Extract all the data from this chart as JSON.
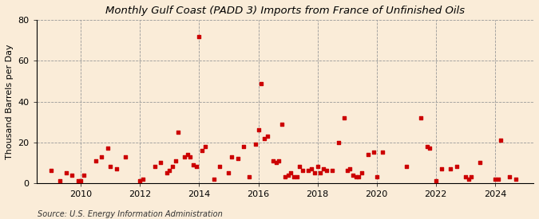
{
  "title": "Monthly Gulf Coast (PADD 3) Imports from France of Unfinished Oils",
  "ylabel": "Thousand Barrels per Day",
  "source": "Source: U.S. Energy Information Administration",
  "background_color": "#faecd8",
  "plot_background_color": "#faecd8",
  "marker_color": "#cc0000",
  "marker_size": 9,
  "ylim": [
    0,
    80
  ],
  "yticks": [
    0,
    20,
    40,
    60,
    80
  ],
  "xlim_start": 2008.5,
  "xlim_end": 2025.3,
  "xticks": [
    2010,
    2012,
    2014,
    2016,
    2018,
    2020,
    2022,
    2024
  ],
  "data_points": [
    [
      2009.0,
      6
    ],
    [
      2009.3,
      1
    ],
    [
      2009.5,
      5
    ],
    [
      2009.7,
      4
    ],
    [
      2009.9,
      1
    ],
    [
      2010.0,
      1
    ],
    [
      2010.1,
      4
    ],
    [
      2010.5,
      11
    ],
    [
      2010.7,
      13
    ],
    [
      2010.9,
      17
    ],
    [
      2011.0,
      8
    ],
    [
      2011.2,
      7
    ],
    [
      2011.5,
      13
    ],
    [
      2012.0,
      1
    ],
    [
      2012.1,
      2
    ],
    [
      2012.5,
      8
    ],
    [
      2012.7,
      10
    ],
    [
      2012.9,
      5
    ],
    [
      2013.0,
      6
    ],
    [
      2013.1,
      8
    ],
    [
      2013.2,
      11
    ],
    [
      2013.3,
      25
    ],
    [
      2013.5,
      13
    ],
    [
      2013.6,
      14
    ],
    [
      2013.7,
      13
    ],
    [
      2013.8,
      9
    ],
    [
      2013.9,
      8
    ],
    [
      2014.0,
      72
    ],
    [
      2014.1,
      16
    ],
    [
      2014.2,
      18
    ],
    [
      2014.5,
      2
    ],
    [
      2014.7,
      8
    ],
    [
      2015.0,
      5
    ],
    [
      2015.1,
      13
    ],
    [
      2015.3,
      12
    ],
    [
      2015.5,
      18
    ],
    [
      2015.7,
      3
    ],
    [
      2015.9,
      19
    ],
    [
      2016.0,
      26
    ],
    [
      2016.1,
      49
    ],
    [
      2016.2,
      22
    ],
    [
      2016.3,
      23
    ],
    [
      2016.5,
      11
    ],
    [
      2016.6,
      10
    ],
    [
      2016.7,
      11
    ],
    [
      2016.8,
      29
    ],
    [
      2016.9,
      3
    ],
    [
      2017.0,
      4
    ],
    [
      2017.1,
      5
    ],
    [
      2017.2,
      3
    ],
    [
      2017.3,
      3
    ],
    [
      2017.4,
      8
    ],
    [
      2017.5,
      6
    ],
    [
      2017.7,
      6
    ],
    [
      2017.8,
      7
    ],
    [
      2017.9,
      5
    ],
    [
      2018.0,
      8
    ],
    [
      2018.1,
      5
    ],
    [
      2018.2,
      7
    ],
    [
      2018.3,
      6
    ],
    [
      2018.5,
      6
    ],
    [
      2018.7,
      20
    ],
    [
      2018.9,
      32
    ],
    [
      2019.0,
      6
    ],
    [
      2019.1,
      7
    ],
    [
      2019.2,
      4
    ],
    [
      2019.3,
      3
    ],
    [
      2019.4,
      3
    ],
    [
      2019.5,
      5
    ],
    [
      2019.7,
      14
    ],
    [
      2019.9,
      15
    ],
    [
      2020.0,
      3
    ],
    [
      2020.2,
      15
    ],
    [
      2021.0,
      8
    ],
    [
      2021.5,
      32
    ],
    [
      2021.7,
      18
    ],
    [
      2021.8,
      17
    ],
    [
      2022.0,
      1
    ],
    [
      2022.2,
      7
    ],
    [
      2022.5,
      7
    ],
    [
      2022.7,
      8
    ],
    [
      2023.0,
      3
    ],
    [
      2023.1,
      2
    ],
    [
      2023.2,
      3
    ],
    [
      2023.5,
      10
    ],
    [
      2024.0,
      2
    ],
    [
      2024.1,
      2
    ],
    [
      2024.2,
      21
    ],
    [
      2024.5,
      3
    ],
    [
      2024.7,
      2
    ]
  ]
}
